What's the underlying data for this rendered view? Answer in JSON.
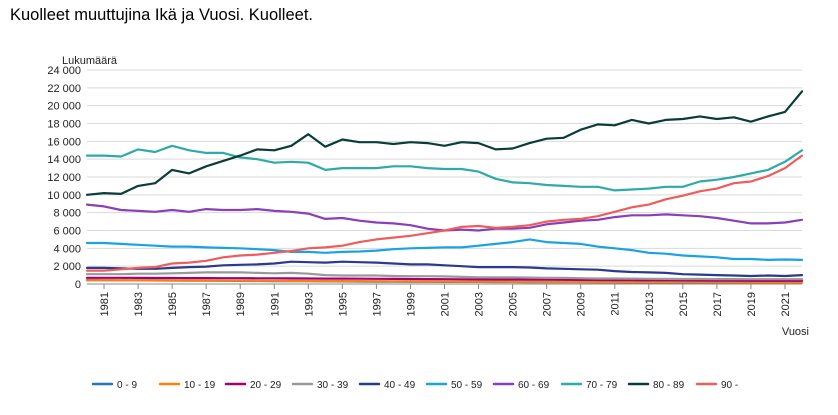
{
  "chart_data": {
    "type": "line",
    "title": "Kuolleet muuttujina Ikä ja Vuosi. Kuolleet.",
    "ylabel": "Lukumäärä",
    "xlabel": "Vuosi",
    "ylim": [
      0,
      24000
    ],
    "yticks": [
      0,
      2000,
      4000,
      6000,
      8000,
      10000,
      12000,
      14000,
      16000,
      18000,
      20000,
      22000,
      24000
    ],
    "ytick_labels": [
      "0",
      "2 000",
      "4 000",
      "6 000",
      "8 000",
      "10 000",
      "12 000",
      "14 000",
      "16 000",
      "18 000",
      "20 000",
      "22 000",
      "24 000"
    ],
    "x": [
      1980,
      1981,
      1982,
      1983,
      1984,
      1985,
      1986,
      1987,
      1988,
      1989,
      1990,
      1991,
      1992,
      1993,
      1994,
      1995,
      1996,
      1997,
      1998,
      1999,
      2000,
      2001,
      2002,
      2003,
      2004,
      2005,
      2006,
      2007,
      2008,
      2009,
      2010,
      2011,
      2012,
      2013,
      2014,
      2015,
      2016,
      2017,
      2018,
      2019,
      2020,
      2021,
      2022
    ],
    "xtick_labels": [
      "1981",
      "1983",
      "1985",
      "1987",
      "1989",
      "1991",
      "1993",
      "1995",
      "1997",
      "1999",
      "2001",
      "2003",
      "2005",
      "2007",
      "2009",
      "2011",
      "2013",
      "2015",
      "2017",
      "2019",
      "2021"
    ],
    "grid": true,
    "legend_position": "bottom",
    "series": [
      {
        "name": "0 - 9",
        "color": "#1f77b4",
        "values": [
          450,
          430,
          420,
          410,
          400,
          390,
          380,
          370,
          360,
          350,
          340,
          330,
          320,
          310,
          300,
          290,
          280,
          270,
          260,
          250,
          245,
          240,
          235,
          230,
          225,
          220,
          215,
          210,
          205,
          200,
          195,
          190,
          185,
          180,
          175,
          170,
          165,
          160,
          155,
          150,
          150,
          150,
          150
        ]
      },
      {
        "name": "10 - 19",
        "color": "#ff7f0e",
        "values": [
          420,
          410,
          400,
          400,
          390,
          390,
          380,
          380,
          370,
          370,
          360,
          360,
          350,
          340,
          330,
          320,
          320,
          310,
          300,
          290,
          280,
          280,
          270,
          260,
          260,
          250,
          250,
          240,
          240,
          230,
          220,
          220,
          210,
          210,
          200,
          200,
          190,
          190,
          180,
          180,
          170,
          170,
          170
        ]
      },
      {
        "name": "20 - 29",
        "color": "#a0007a",
        "values": [
          700,
          700,
          690,
          680,
          670,
          670,
          660,
          660,
          650,
          650,
          640,
          640,
          630,
          620,
          610,
          600,
          590,
          580,
          570,
          560,
          550,
          540,
          530,
          520,
          510,
          500,
          490,
          480,
          470,
          460,
          450,
          440,
          430,
          420,
          410,
          400,
          390,
          380,
          370,
          360,
          360,
          360,
          360
        ]
      },
      {
        "name": "30 - 39",
        "color": "#999999",
        "values": [
          1100,
          1100,
          1100,
          1150,
          1150,
          1200,
          1250,
          1300,
          1300,
          1300,
          1250,
          1200,
          1250,
          1150,
          1000,
          950,
          950,
          950,
          900,
          880,
          880,
          850,
          800,
          750,
          750,
          750,
          720,
          700,
          700,
          650,
          620,
          620,
          600,
          580,
          570,
          560,
          560,
          550,
          550,
          540,
          540,
          540,
          540
        ]
      },
      {
        "name": "40 - 49",
        "color": "#2a3a8c",
        "values": [
          1800,
          1800,
          1750,
          1700,
          1700,
          1800,
          1900,
          1950,
          2100,
          2150,
          2200,
          2300,
          2500,
          2450,
          2400,
          2500,
          2450,
          2400,
          2300,
          2200,
          2200,
          2100,
          2000,
          1900,
          1900,
          1900,
          1850,
          1750,
          1700,
          1650,
          1600,
          1450,
          1350,
          1300,
          1250,
          1100,
          1050,
          1000,
          950,
          900,
          950,
          900,
          1000
        ]
      },
      {
        "name": "50 - 59",
        "color": "#1aa3e0",
        "values": [
          4600,
          4600,
          4500,
          4400,
          4300,
          4200,
          4200,
          4100,
          4050,
          4000,
          3900,
          3800,
          3600,
          3600,
          3500,
          3600,
          3650,
          3750,
          3900,
          4000,
          4050,
          4100,
          4100,
          4300,
          4500,
          4700,
          5000,
          4700,
          4600,
          4500,
          4200,
          4000,
          3800,
          3500,
          3400,
          3200,
          3100,
          3000,
          2800,
          2800,
          2700,
          2750,
          2700
        ]
      },
      {
        "name": "60 - 69",
        "color": "#8a3fb8",
        "values": [
          8900,
          8700,
          8300,
          8200,
          8100,
          8300,
          8100,
          8400,
          8300,
          8300,
          8400,
          8200,
          8100,
          7900,
          7300,
          7400,
          7100,
          6900,
          6800,
          6600,
          6200,
          6000,
          6100,
          6000,
          6200,
          6200,
          6300,
          6700,
          6900,
          7100,
          7200,
          7500,
          7700,
          7700,
          7800,
          7700,
          7600,
          7400,
          7100,
          6800,
          6800,
          6900,
          7200
        ]
      },
      {
        "name": "70 - 79",
        "color": "#2eaaa8",
        "values": [
          14400,
          14400,
          14300,
          15100,
          14800,
          15500,
          15000,
          14700,
          14700,
          14200,
          14000,
          13600,
          13700,
          13600,
          12800,
          13000,
          13000,
          13000,
          13200,
          13200,
          13000,
          12900,
          12900,
          12600,
          11800,
          11400,
          11300,
          11100,
          11000,
          10900,
          10900,
          10500,
          10600,
          10700,
          10900,
          10900,
          11500,
          11700,
          12000,
          12400,
          12800,
          13700,
          15000
        ]
      },
      {
        "name": "80 - 89",
        "color": "#0a3d3a",
        "values": [
          10000,
          10200,
          10100,
          11000,
          11300,
          12800,
          12400,
          13200,
          13800,
          14400,
          15100,
          15000,
          15500,
          16800,
          15400,
          16200,
          15900,
          15900,
          15700,
          15900,
          15800,
          15500,
          15900,
          15800,
          15100,
          15200,
          15800,
          16300,
          16400,
          17300,
          17900,
          17800,
          18400,
          18000,
          18400,
          18500,
          18800,
          18500,
          18700,
          18200,
          18800,
          19300,
          21600
        ]
      },
      {
        "name": "90 -",
        "color": "#ee5c5c",
        "values": [
          1500,
          1500,
          1650,
          1800,
          1900,
          2300,
          2400,
          2600,
          3000,
          3200,
          3300,
          3500,
          3700,
          4000,
          4100,
          4300,
          4700,
          5000,
          5200,
          5400,
          5700,
          6000,
          6400,
          6500,
          6300,
          6400,
          6600,
          7000,
          7200,
          7300,
          7600,
          8100,
          8600,
          8900,
          9500,
          9900,
          10400,
          10700,
          11300,
          11500,
          12100,
          13000,
          14400
        ]
      }
    ]
  }
}
